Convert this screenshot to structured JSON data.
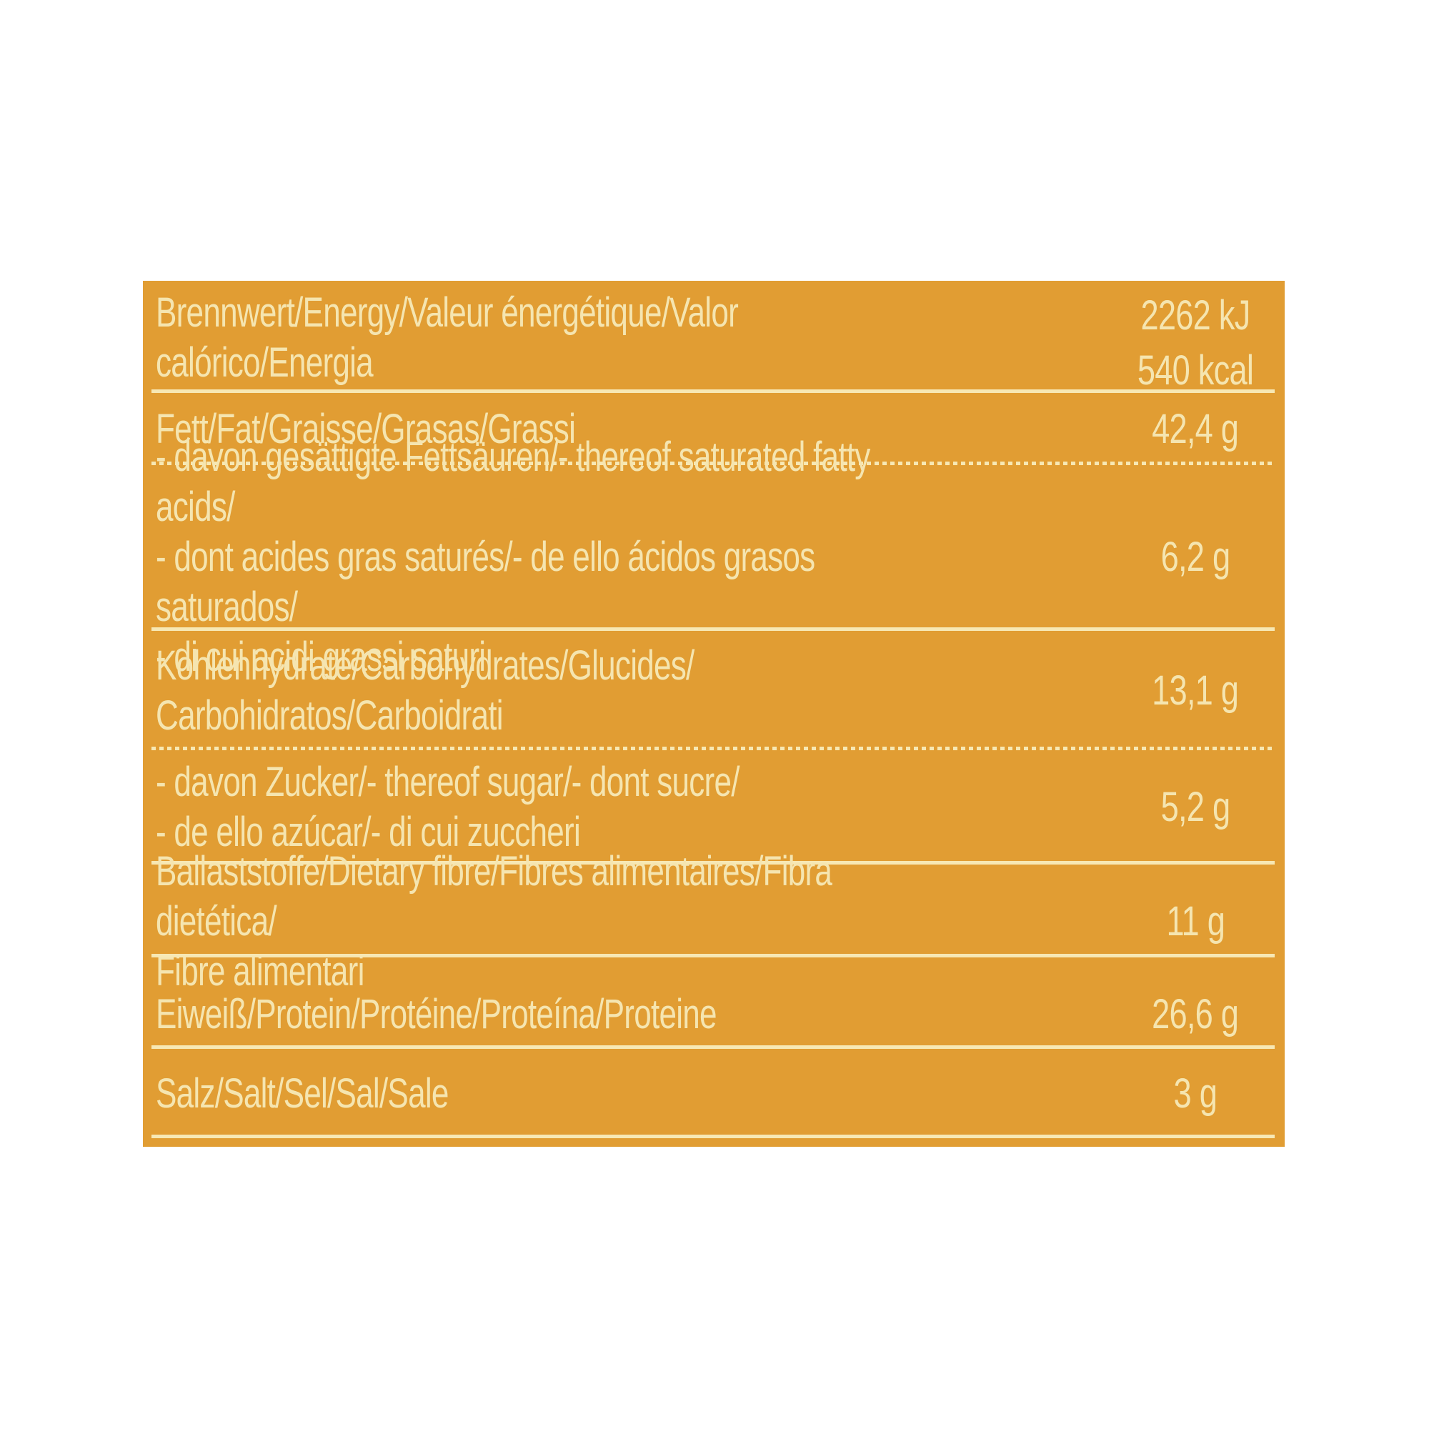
{
  "nutrition_table": {
    "colors": {
      "panel_background": "#e19d33",
      "text": "#f5e5b0",
      "separator": "#f7e8b4",
      "page_background": "#ffffff"
    },
    "rows": [
      {
        "label": "Brennwert/Energy/Valeur énergétique/Valor calórico/Energia",
        "values": [
          "2262 kJ",
          "540 kcal"
        ]
      },
      {
        "label": "Fett/Fat/Graisse/Grasas/Grassi",
        "values": [
          "42,4 g"
        ]
      },
      {
        "label": "- davon gesättigte Fettsäuren/- thereof saturated fatty acids/\n- dont acides gras saturés/- de ello ácidos grasos saturados/\n- di cui acidi grassi saturi",
        "values": [
          "6,2 g"
        ]
      },
      {
        "label": "Kohlenhydrate/Carbohydrates/Glucides/\nCarbohidratos/Carboidrati",
        "values": [
          "13,1 g"
        ]
      },
      {
        "label": "- davon Zucker/- thereof sugar/- dont sucre/\n- de ello azúcar/- di cui zuccheri",
        "values": [
          "5,2 g"
        ]
      },
      {
        "label": "Ballaststoffe/Dietary fibre/Fibres alimentaires/Fibra dietética/\nFibre alimentari",
        "values": [
          "11 g"
        ]
      },
      {
        "label": "Eiweiß/Protein/Protéine/Proteína/Proteine",
        "values": [
          "26,6 g"
        ]
      },
      {
        "label": "Salz/Salt/Sel/Sal/Sale",
        "values": [
          "3 g"
        ]
      }
    ]
  }
}
